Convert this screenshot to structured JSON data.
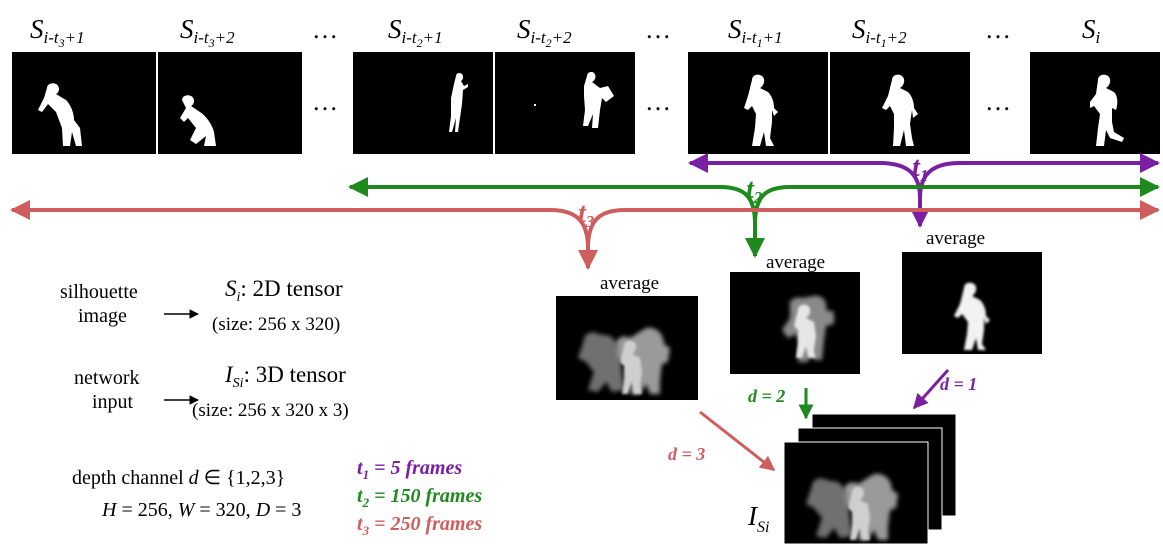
{
  "colors": {
    "t1": "#7a1fa2",
    "t2": "#1e8a1e",
    "t3": "#cf5d5d"
  },
  "frame_labels": {
    "f1": {
      "base": "S",
      "sub": "i-t",
      "subsub": "3",
      "tail": "+1"
    },
    "f2": {
      "base": "S",
      "sub": "i-t",
      "subsub": "3",
      "tail": "+2"
    },
    "f3": {
      "base": "S",
      "sub": "i-t",
      "subsub": "2",
      "tail": "+1"
    },
    "f4": {
      "base": "S",
      "sub": "i-t",
      "subsub": "2",
      "tail": "+2"
    },
    "f5": {
      "base": "S",
      "sub": "i-t",
      "subsub": "1",
      "tail": "+1"
    },
    "f6": {
      "base": "S",
      "sub": "i-t",
      "subsub": "1",
      "tail": "+2"
    },
    "f7": {
      "base": "S",
      "sub": "i"
    }
  },
  "ellipsis": "…",
  "windows": {
    "t1": {
      "base": "t",
      "sub": "1"
    },
    "t2": {
      "base": "t",
      "sub": "2"
    },
    "t3": {
      "base": "t",
      "sub": "3"
    }
  },
  "average_label": "average",
  "depth_labels": {
    "d1": "d = 1",
    "d2": "d = 2",
    "d3": "d = 3"
  },
  "output": {
    "base": "I",
    "sub": "Si"
  },
  "legend": {
    "silhouette_line1": "silhouette",
    "silhouette_line2": "image",
    "silhouette_sym": "S",
    "silhouette_sub": "i",
    "silhouette_desc": ": 2D tensor",
    "silhouette_size": "(size: 256 x 320)",
    "network_line1": "network",
    "network_line2": "input",
    "network_sym": "I",
    "network_sub": "Si",
    "network_desc": ": 3D tensor",
    "network_size": "(size: 256 x 320 x 3)",
    "depth_prefix": "depth channel ",
    "depth_var": "d",
    "depth_set": " ∈ {1,2,3}",
    "hwd_H": "H",
    "hwd_H_val": " = 256, ",
    "hwd_W": "W",
    "hwd_W_val": " = 320, ",
    "hwd_D": "D",
    "hwd_D_val": " = 3"
  },
  "frame_counts": {
    "t1": {
      "base": "t",
      "sub": "1",
      "text": " = 5 frames"
    },
    "t2": {
      "base": "t",
      "sub": "2",
      "text": " = 150 frames"
    },
    "t3": {
      "base": "t",
      "sub": "3",
      "text": " = 250 frames"
    }
  }
}
